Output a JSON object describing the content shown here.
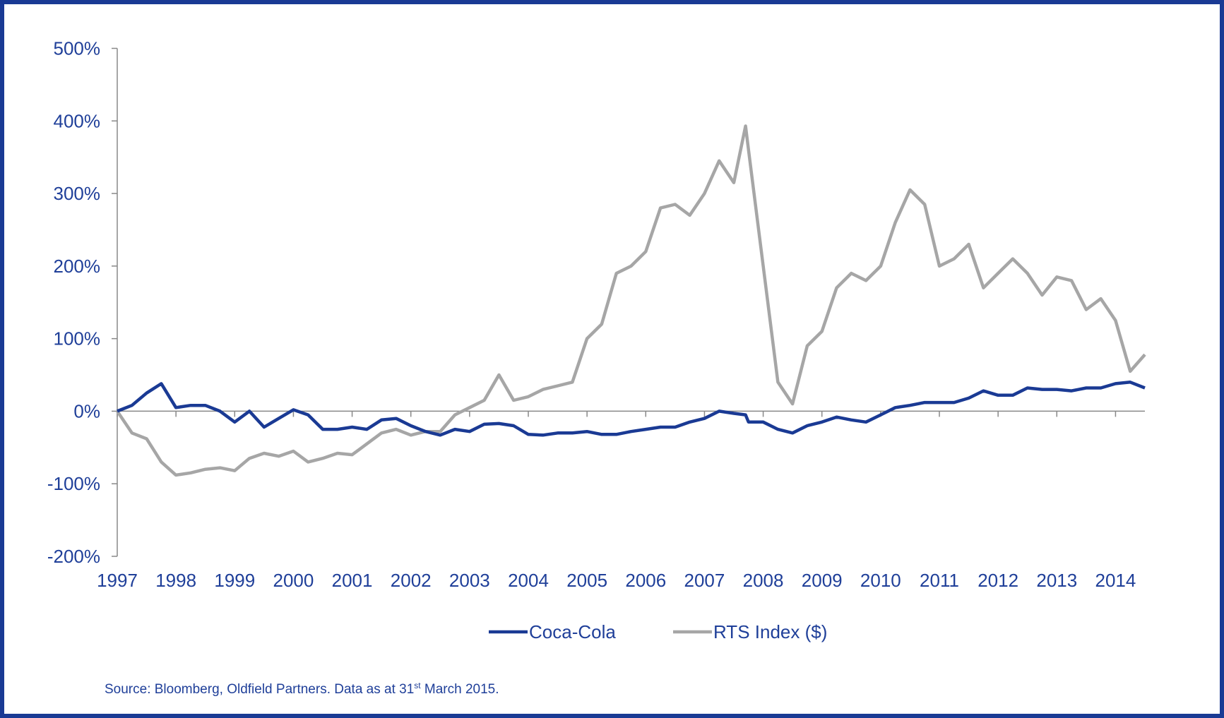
{
  "chart_data": {
    "type": "line",
    "x": [
      1997,
      1997.25,
      1997.5,
      1997.75,
      1998,
      1998.25,
      1998.5,
      1998.75,
      1999,
      1999.25,
      1999.5,
      1999.75,
      2000,
      2000.25,
      2000.5,
      2000.75,
      2001,
      2001.25,
      2001.5,
      2001.75,
      2002,
      2002.25,
      2002.5,
      2002.75,
      2003,
      2003.25,
      2003.5,
      2003.75,
      2004,
      2004.25,
      2004.5,
      2004.75,
      2005,
      2005.25,
      2005.5,
      2005.75,
      2006,
      2006.25,
      2006.5,
      2006.75,
      2007,
      2007.25,
      2007.5,
      2007.7,
      2007.75,
      2008,
      2008.25,
      2008.5,
      2008.75,
      2009,
      2009.25,
      2009.5,
      2009.75,
      2010,
      2010.25,
      2010.5,
      2010.75,
      2011,
      2011.25,
      2011.5,
      2011.75,
      2012,
      2012.25,
      2012.5,
      2012.75,
      2013,
      2013.25,
      2013.5,
      2013.75,
      2014,
      2014.25,
      2014.5
    ],
    "series": [
      {
        "name": "Coca-Cola",
        "color": "#1a3a94",
        "values": [
          0,
          8,
          25,
          38,
          5,
          8,
          8,
          0,
          -15,
          0,
          -22,
          -10,
          2,
          -5,
          -25,
          -25,
          -22,
          -25,
          -12,
          -10,
          -20,
          -28,
          -33,
          -25,
          -28,
          -18,
          -17,
          -20,
          -32,
          -33,
          -30,
          -30,
          -28,
          -32,
          -32,
          -28,
          -25,
          -22,
          -22,
          -15,
          -10,
          0,
          -3,
          -5,
          -15,
          -15,
          -25,
          -30,
          -20,
          -15,
          -8,
          -12,
          -15,
          -5,
          5,
          8,
          12,
          12,
          12,
          18,
          28,
          22,
          22,
          32,
          30,
          30,
          28,
          32,
          32,
          38,
          40,
          32
        ]
      },
      {
        "name": "RTS Index ($)",
        "color": "#a6a6a6",
        "values": [
          0,
          -30,
          -38,
          -70,
          -88,
          -85,
          -80,
          -78,
          -82,
          -65,
          -58,
          -62,
          -55,
          -70,
          -65,
          -58,
          -60,
          -45,
          -30,
          -25,
          -33,
          -28,
          -28,
          -5,
          5,
          15,
          50,
          15,
          20,
          30,
          35,
          40,
          100,
          120,
          190,
          200,
          220,
          280,
          285,
          270,
          300,
          345,
          315,
          393,
          360,
          200,
          40,
          10,
          90,
          110,
          170,
          190,
          180,
          200,
          260,
          305,
          285,
          200,
          210,
          230,
          170,
          190,
          210,
          190,
          160,
          185,
          180,
          140,
          155,
          125,
          55,
          78
        ]
      }
    ],
    "xlim": [
      1997,
      2014.5
    ],
    "xticks": [
      1997,
      1998,
      1999,
      2000,
      2001,
      2002,
      2003,
      2004,
      2005,
      2006,
      2007,
      2008,
      2009,
      2010,
      2011,
      2012,
      2013,
      2014
    ],
    "ylim": [
      -200,
      500
    ],
    "yticks": [
      {
        "value": -200,
        "label": "-200%"
      },
      {
        "value": -100,
        "label": "-100%"
      },
      {
        "value": 0,
        "label": "0%"
      },
      {
        "value": 100,
        "label": "100%"
      },
      {
        "value": 200,
        "label": "200%"
      },
      {
        "value": 300,
        "label": "300%"
      },
      {
        "value": 400,
        "label": "400%"
      },
      {
        "value": 500,
        "label": "500%"
      }
    ],
    "grid": false,
    "legend": "bottom",
    "source": [
      "Source: Bloomberg, Oldfield Partners. Data as at 31",
      "st",
      " March 2015."
    ]
  }
}
